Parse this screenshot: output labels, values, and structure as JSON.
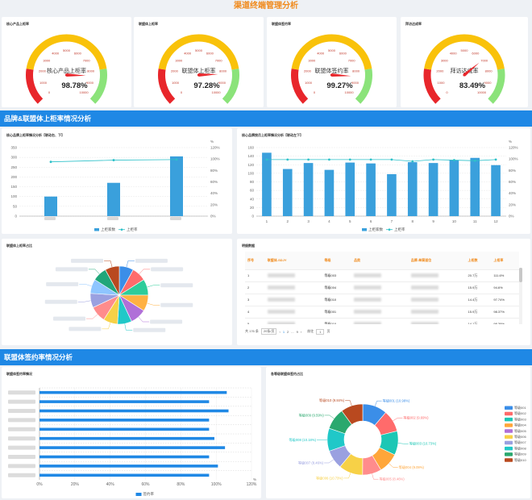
{
  "page_title": "渠道终端管理分析",
  "gauges": [
    {
      "title": "核心产品上柜率",
      "center_label": "核心产品上柜率",
      "value": 98.78,
      "display": "98.78%"
    },
    {
      "title": "联盟体上柜率",
      "center_label": "联盟体上柜率",
      "value": 97.28,
      "display": "97.28%"
    },
    {
      "title": "联盟体签约率",
      "center_label": "联盟体签约率",
      "value": 99.27,
      "display": "99.27%"
    },
    {
      "title": "拜访达成率",
      "center_label": "拜访达成率",
      "value": 83.49,
      "display": "83.49%"
    }
  ],
  "gauge_scale": [
    "0",
    "1000",
    "2000",
    "3000",
    "4000",
    "5000",
    "6000",
    "7000",
    "8000",
    "9000",
    "10000"
  ],
  "sections": {
    "brand": "品牌&联盟体上柜率情况分析",
    "sign": "联盟体签约率情况分析"
  },
  "colors": {
    "bar": "#3aa0dc",
    "line": "#2ec1c9",
    "section": "#1f88e5",
    "accent": "#f08a1c"
  },
  "chart_data": [
    {
      "type": "bar",
      "title": "核心品牌上柜率情况分析【联动右、下】",
      "categories": [
        "",
        "",
        ""
      ],
      "series": [
        {
          "name": "上柜家数",
          "values": [
            100,
            170,
            305
          ]
        },
        {
          "name": "上柜率",
          "values": [
            95,
            98,
            99
          ]
        }
      ],
      "ylim": [
        0,
        350
      ],
      "y2lim": [
        0,
        120
      ],
      "yticks": [
        "0",
        "50",
        "100",
        "150",
        "200",
        "250",
        "300",
        "350"
      ],
      "y2ticks": [
        "0%",
        "20%",
        "40%",
        "60%",
        "80%",
        "100%",
        "120%"
      ],
      "y2unit": "%",
      "legend": "bottom"
    },
    {
      "type": "bar",
      "title": "核心品牌按月上柜率情况分析【联动左下】",
      "categories": [
        "1",
        "2",
        "3",
        "4",
        "5",
        "6",
        "7",
        "8",
        "9",
        "10",
        "11",
        "12"
      ],
      "series": [
        {
          "name": "上柜家数",
          "values": [
            148,
            110,
            124,
            108,
            125,
            123,
            98,
            126,
            124,
            131,
            136,
            119
          ]
        },
        {
          "name": "上柜率",
          "values": [
            99,
            99,
            99,
            99,
            99,
            99,
            99,
            96,
            99,
            98,
            97,
            99
          ]
        }
      ],
      "ylim": [
        0,
        160
      ],
      "y2lim": [
        0,
        120
      ],
      "yticks": [
        "0",
        "20",
        "40",
        "60",
        "80",
        "100",
        "120",
        "140",
        "160"
      ],
      "y2ticks": [
        "0%",
        "20%",
        "40%",
        "60%",
        "80%",
        "100%",
        "120%"
      ],
      "y2unit": "%",
      "legend": "bottom"
    },
    {
      "type": "pie",
      "title": "联盟体上柜率占比",
      "values": [
        8,
        8,
        9,
        9,
        9,
        8,
        8,
        9,
        8,
        8,
        8,
        8
      ],
      "colors": [
        "#3b8ee8",
        "#ff6b6b",
        "#2ecc9a",
        "#ffb142",
        "#b06fd8",
        "#20c8c8",
        "#f7d147",
        "#ff8c8c",
        "#9aa0e0",
        "#8ec5ff",
        "#21a67a",
        "#b9491f"
      ]
    },
    {
      "type": "bar",
      "orientation": "horizontal",
      "title": "联盟体签约率情况",
      "values": [
        106,
        96,
        107,
        96,
        96,
        99,
        105,
        96,
        101,
        96
      ],
      "xlim": [
        0,
        120
      ],
      "xticks": [
        "0%",
        "20%",
        "40%",
        "60%",
        "80%",
        "100%",
        "120%"
      ],
      "xunit": "%",
      "series_name": "签约率",
      "legend": "bottom"
    },
    {
      "type": "pie",
      "donut": true,
      "title": "各等级联盟体签约占比",
      "labels": [
        "等级001 (10.98%)",
        "等级002 (9.69%)",
        "等级003 (10.73%)",
        "等级004 (9.09%)",
        "等级005 (8.46%)",
        "等级006 (10.73%)",
        "等级007 (8.46%)",
        "等级008 (10.18%)",
        "等级009 (9.59%)",
        "等级010 (9.84%)"
      ],
      "values": [
        10.98,
        9.69,
        10.73,
        9.09,
        8.46,
        10.73,
        8.46,
        10.18,
        9.59,
        9.84
      ],
      "colors": [
        "#3b8ee8",
        "#ff6b6b",
        "#1cc7b5",
        "#ffa63a",
        "#ff8c8c",
        "#f7d147",
        "#9aa0e0",
        "#20c8c8",
        "#2aa86e",
        "#b9491f"
      ],
      "legend": [
        "等级001",
        "等级002",
        "等级003",
        "等级004",
        "等级005",
        "等级006",
        "等级007",
        "等级008",
        "等级009",
        "等级010"
      ],
      "legend_colors": [
        "#3b8ee8",
        "#ff6b6b",
        "#1cc7b5",
        "#ffa63a",
        "#b06fd8",
        "#f7d147",
        "#9aa0e0",
        "#20c8c8",
        "#2aa86e",
        "#b9491f"
      ]
    }
  ],
  "table": {
    "title": "明细数据",
    "headers": [
      "序号",
      "联盟体-SDJY",
      "等级",
      "品类",
      "品牌-单渠道位",
      "上柜数",
      "上柜率"
    ],
    "rows": [
      {
        "no": "1",
        "level": "等级003",
        "count": "20.7万",
        "rate": "111.6%"
      },
      {
        "no": "2",
        "level": "等级004",
        "count": "15.9万",
        "rate": "94.6%"
      },
      {
        "no": "3",
        "level": "等级010",
        "count": "14.4万",
        "rate": "97.74%"
      },
      {
        "no": "4",
        "level": "等级001",
        "count": "15.9万",
        "rate": "98.37%"
      },
      {
        "no": "5",
        "level": "等级010",
        "count": "14.1万",
        "rate": "98.39%"
      }
    ],
    "pager": {
      "total": "共 176 条",
      "per_page": "20条/页",
      "prev": "‹",
      "page1": "1",
      "page2": "2",
      "ellipsis": "...",
      "page9": "9",
      "next": "›",
      "goto": "前往",
      "goto_value": "1",
      "unit": "页"
    }
  }
}
